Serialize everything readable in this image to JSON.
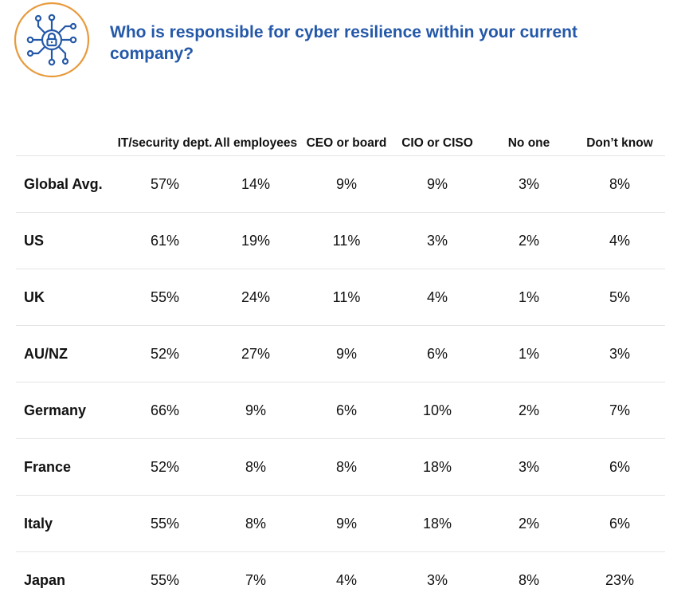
{
  "colors": {
    "title": "#2458a8",
    "icon_ring": "#e89a3c",
    "icon_network": "#2458a8",
    "row_divider": "#e4e4e4"
  },
  "header": {
    "icon": "network-lock-icon",
    "title": "Who is responsible for cyber resilience within your current company?"
  },
  "chart_data": {
    "type": "table",
    "columns": [
      "IT/security dept.",
      "All employees",
      "CEO or board",
      "CIO or CISO",
      "No one",
      "Don’t know"
    ],
    "rows": [
      {
        "label": "Global Avg.",
        "values": [
          "57%",
          "14%",
          "9%",
          "9%",
          "3%",
          "8%"
        ]
      },
      {
        "label": "US",
        "values": [
          "61%",
          "19%",
          "11%",
          "3%",
          "2%",
          "4%"
        ]
      },
      {
        "label": "UK",
        "values": [
          "55%",
          "24%",
          "11%",
          "4%",
          "1%",
          "5%"
        ]
      },
      {
        "label": "AU/NZ",
        "values": [
          "52%",
          "27%",
          "9%",
          "6%",
          "1%",
          "3%"
        ]
      },
      {
        "label": "Germany",
        "values": [
          "66%",
          "9%",
          "6%",
          "10%",
          "2%",
          "7%"
        ]
      },
      {
        "label": "France",
        "values": [
          "52%",
          "8%",
          "8%",
          "18%",
          "3%",
          "6%"
        ]
      },
      {
        "label": "Italy",
        "values": [
          "55%",
          "8%",
          "9%",
          "18%",
          "2%",
          "6%"
        ]
      },
      {
        "label": "Japan",
        "values": [
          "55%",
          "7%",
          "4%",
          "3%",
          "8%",
          "23%"
        ]
      }
    ]
  }
}
